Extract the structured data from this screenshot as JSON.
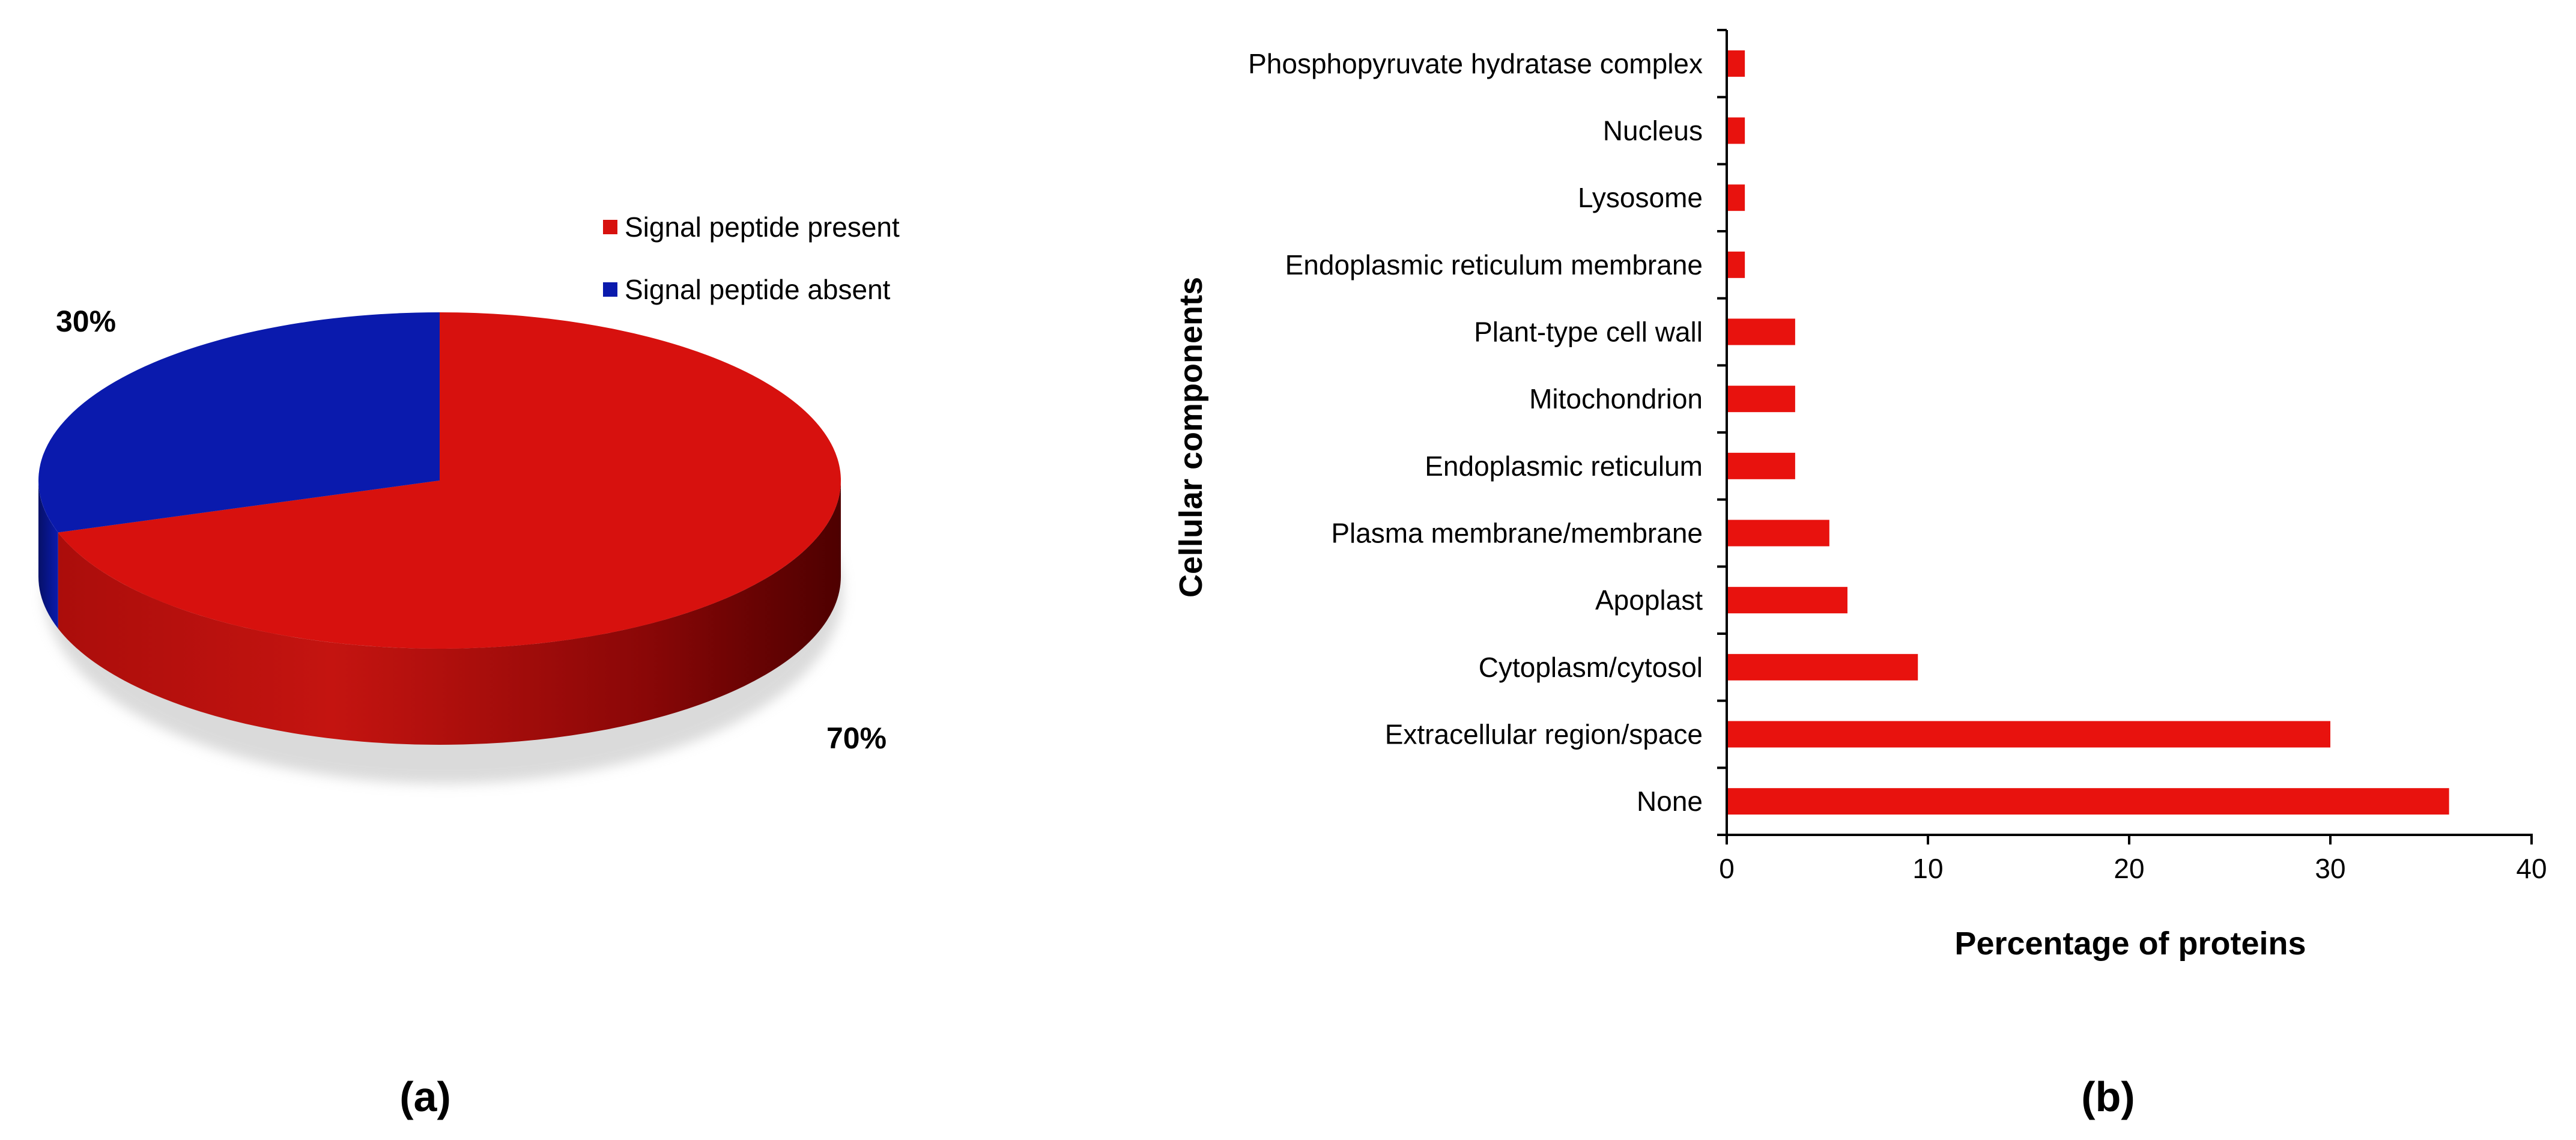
{
  "panels": {
    "a_label": "(a)",
    "b_label": "(b)"
  },
  "chart_data": [
    {
      "type": "pie",
      "style": "3d",
      "slices": [
        {
          "label": "Signal peptide present",
          "value": 70,
          "display": "70%",
          "color": "#d7110e"
        },
        {
          "label": "Signal peptide absent",
          "value": 30,
          "display": "30%",
          "color": "#0a1aad"
        }
      ],
      "legend_position": "top-right"
    },
    {
      "type": "bar",
      "orientation": "horizontal",
      "categories": [
        "None",
        "Extracellular region/space",
        "Cytoplasm/cytosol",
        "Apoplast",
        "Plasma membrane/membrane",
        "Endoplasmic reticulum",
        "Mitochondrion",
        "Plant-type cell wall",
        "Endoplasmic reticulum membrane",
        "Lysosome",
        "Nucleus",
        "Phosphopyruvate hydratase complex"
      ],
      "values": [
        35.9,
        30.0,
        9.5,
        6.0,
        5.1,
        3.4,
        3.4,
        3.4,
        0.9,
        0.9,
        0.9,
        0.9
      ],
      "xlabel": "Percentage of proteins",
      "ylabel": "Cellular components",
      "xlim": [
        0,
        40
      ],
      "xticks": [
        "0",
        "10",
        "20",
        "30",
        "40"
      ],
      "bar_color": "#e8120e",
      "grid": false
    }
  ]
}
